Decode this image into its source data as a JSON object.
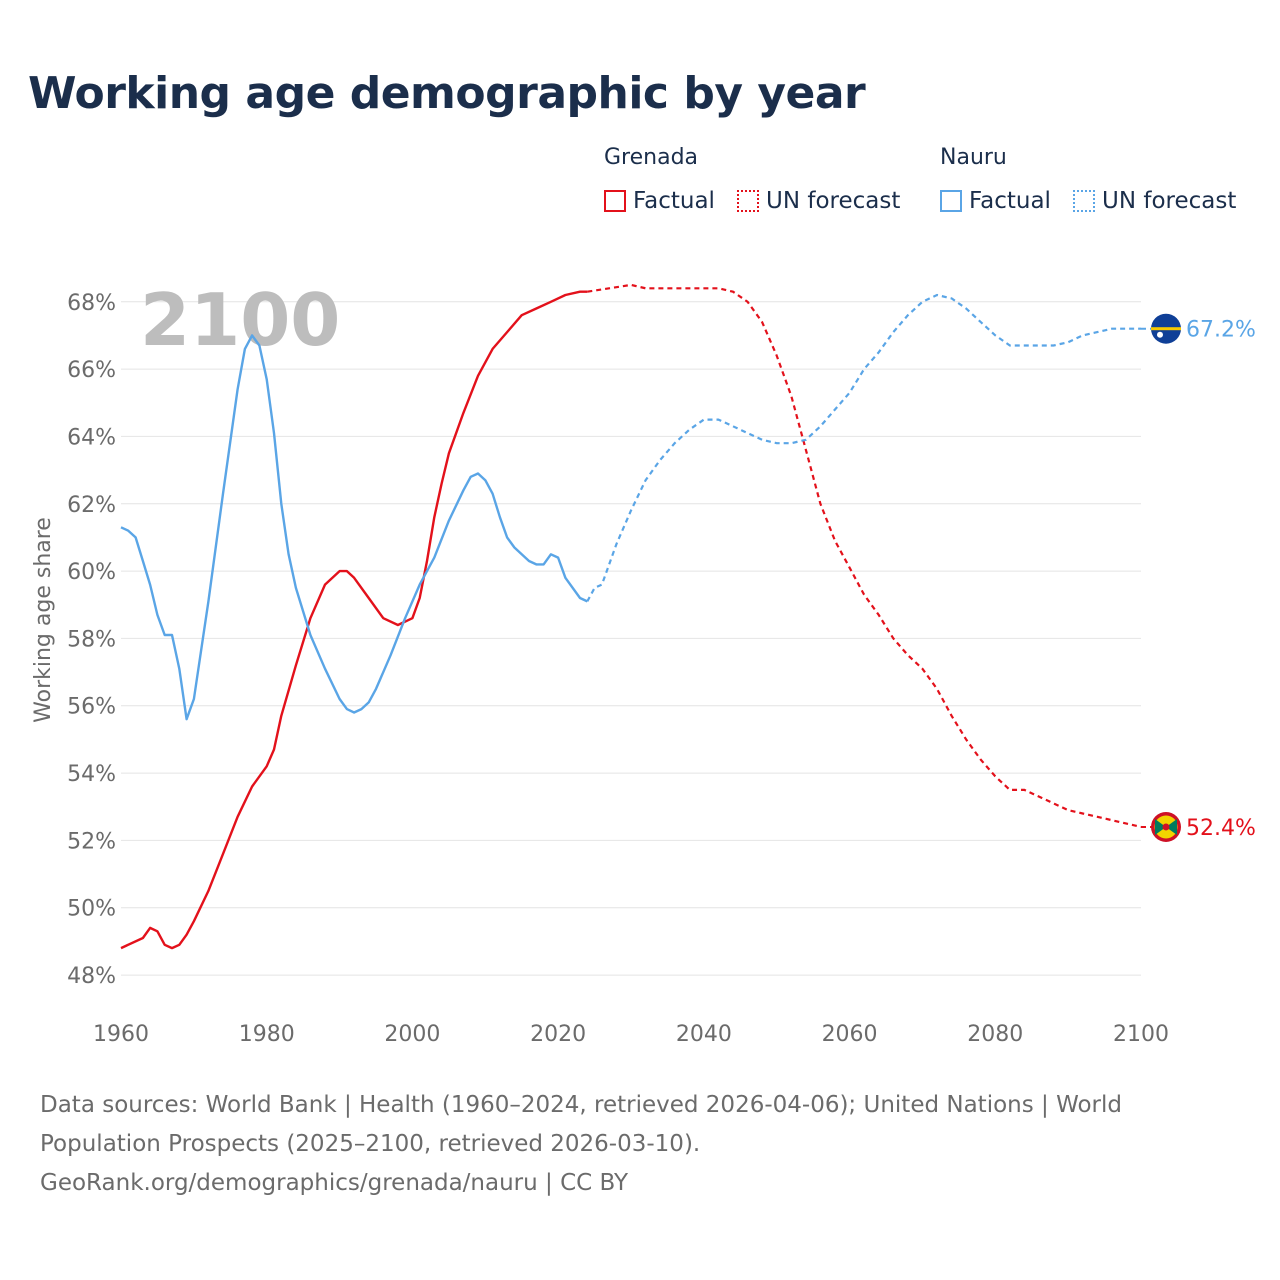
{
  "title": "Working age demographic by year",
  "legend": {
    "groups": [
      {
        "name": "Grenada",
        "color": "#e3111b",
        "items": [
          {
            "label": "Factual",
            "style": "solid"
          },
          {
            "label": "UN forecast",
            "style": "dotted"
          }
        ]
      },
      {
        "name": "Nauru",
        "color": "#5aa5e6",
        "items": [
          {
            "label": "Factual",
            "style": "solid"
          },
          {
            "label": "UN forecast",
            "style": "dotted"
          }
        ]
      }
    ]
  },
  "footer": {
    "line1": "Data sources: World Bank | Health (1960–2024, retrieved 2026-04-06); United Nations | World",
    "line2": "Population Prospects (2025–2100, retrieved 2026-03-10).",
    "line3": "GeoRank.org/demographics/grenada/nauru | CC BY"
  },
  "chart_data": {
    "type": "line",
    "ylabel": "Working age share",
    "xlabel": "",
    "year_display": "2100",
    "xlim": [
      1960,
      2100
    ],
    "ylim": [
      47.2,
      69.3
    ],
    "xticks": [
      1960,
      1980,
      2000,
      2020,
      2040,
      2060,
      2080,
      2100
    ],
    "yticks": [
      48,
      50,
      52,
      54,
      56,
      58,
      60,
      62,
      64,
      66,
      68
    ],
    "ytick_labels": [
      "48%",
      "50%",
      "52%",
      "54%",
      "56%",
      "58%",
      "60%",
      "62%",
      "64%",
      "66%",
      "68%"
    ],
    "forecast_start": 2024,
    "series": [
      {
        "name": "Grenada",
        "color": "#e3111b",
        "end_label": "52.4%",
        "flag": "grenada-flag",
        "points": [
          [
            1960,
            48.8
          ],
          [
            1963,
            49.1
          ],
          [
            1964,
            49.4
          ],
          [
            1965,
            49.3
          ],
          [
            1966,
            48.9
          ],
          [
            1967,
            48.8
          ],
          [
            1968,
            48.9
          ],
          [
            1969,
            49.2
          ],
          [
            1970,
            49.6
          ],
          [
            1972,
            50.5
          ],
          [
            1974,
            51.6
          ],
          [
            1976,
            52.7
          ],
          [
            1978,
            53.6
          ],
          [
            1980,
            54.2
          ],
          [
            1981,
            54.7
          ],
          [
            1982,
            55.7
          ],
          [
            1984,
            57.2
          ],
          [
            1986,
            58.6
          ],
          [
            1988,
            59.6
          ],
          [
            1990,
            60.0
          ],
          [
            1991,
            60.0
          ],
          [
            1992,
            59.8
          ],
          [
            1994,
            59.2
          ],
          [
            1996,
            58.6
          ],
          [
            1998,
            58.4
          ],
          [
            2000,
            58.6
          ],
          [
            2001,
            59.2
          ],
          [
            2002,
            60.3
          ],
          [
            2003,
            61.6
          ],
          [
            2004,
            62.6
          ],
          [
            2005,
            63.5
          ],
          [
            2007,
            64.7
          ],
          [
            2009,
            65.8
          ],
          [
            2011,
            66.6
          ],
          [
            2013,
            67.1
          ],
          [
            2015,
            67.6
          ],
          [
            2017,
            67.8
          ],
          [
            2019,
            68.0
          ],
          [
            2021,
            68.2
          ],
          [
            2023,
            68.3
          ],
          [
            2024,
            68.3
          ],
          [
            2027,
            68.4
          ],
          [
            2030,
            68.5
          ],
          [
            2032,
            68.4
          ],
          [
            2040,
            68.4
          ],
          [
            2042,
            68.4
          ],
          [
            2044,
            68.3
          ],
          [
            2046,
            68.0
          ],
          [
            2048,
            67.4
          ],
          [
            2050,
            66.4
          ],
          [
            2052,
            65.2
          ],
          [
            2054,
            63.6
          ],
          [
            2056,
            62.0
          ],
          [
            2058,
            60.9
          ],
          [
            2060,
            60.1
          ],
          [
            2062,
            59.3
          ],
          [
            2064,
            58.7
          ],
          [
            2066,
            58.0
          ],
          [
            2068,
            57.5
          ],
          [
            2070,
            57.1
          ],
          [
            2072,
            56.5
          ],
          [
            2074,
            55.7
          ],
          [
            2076,
            55.0
          ],
          [
            2078,
            54.4
          ],
          [
            2080,
            53.9
          ],
          [
            2082,
            53.5
          ],
          [
            2084,
            53.5
          ],
          [
            2086,
            53.3
          ],
          [
            2088,
            53.1
          ],
          [
            2090,
            52.9
          ],
          [
            2092,
            52.8
          ],
          [
            2094,
            52.7
          ],
          [
            2096,
            52.6
          ],
          [
            2098,
            52.5
          ],
          [
            2100,
            52.4
          ]
        ]
      },
      {
        "name": "Nauru",
        "color": "#5aa5e6",
        "end_label": "67.2%",
        "flag": "nauru-flag",
        "points": [
          [
            1960,
            61.3
          ],
          [
            1961,
            61.2
          ],
          [
            1962,
            61.0
          ],
          [
            1963,
            60.3
          ],
          [
            1964,
            59.6
          ],
          [
            1965,
            58.7
          ],
          [
            1966,
            58.1
          ],
          [
            1967,
            58.1
          ],
          [
            1968,
            57.1
          ],
          [
            1969,
            55.6
          ],
          [
            1970,
            56.2
          ],
          [
            1972,
            59.1
          ],
          [
            1974,
            62.3
          ],
          [
            1976,
            65.4
          ],
          [
            1977,
            66.6
          ],
          [
            1978,
            67.0
          ],
          [
            1979,
            66.7
          ],
          [
            1980,
            65.7
          ],
          [
            1981,
            64.1
          ],
          [
            1982,
            62.0
          ],
          [
            1983,
            60.5
          ],
          [
            1984,
            59.5
          ],
          [
            1986,
            58.1
          ],
          [
            1988,
            57.1
          ],
          [
            1990,
            56.2
          ],
          [
            1991,
            55.9
          ],
          [
            1992,
            55.8
          ],
          [
            1993,
            55.9
          ],
          [
            1994,
            56.1
          ],
          [
            1995,
            56.5
          ],
          [
            1997,
            57.5
          ],
          [
            1999,
            58.6
          ],
          [
            2001,
            59.6
          ],
          [
            2003,
            60.4
          ],
          [
            2005,
            61.5
          ],
          [
            2007,
            62.4
          ],
          [
            2008,
            62.8
          ],
          [
            2009,
            62.9
          ],
          [
            2010,
            62.7
          ],
          [
            2011,
            62.3
          ],
          [
            2012,
            61.6
          ],
          [
            2013,
            61.0
          ],
          [
            2014,
            60.7
          ],
          [
            2016,
            60.3
          ],
          [
            2017,
            60.2
          ],
          [
            2018,
            60.2
          ],
          [
            2019,
            60.5
          ],
          [
            2020,
            60.4
          ],
          [
            2021,
            59.8
          ],
          [
            2023,
            59.2
          ],
          [
            2024,
            59.1
          ],
          [
            2025,
            59.5
          ],
          [
            2026,
            59.6
          ],
          [
            2028,
            60.8
          ],
          [
            2030,
            61.8
          ],
          [
            2032,
            62.7
          ],
          [
            2034,
            63.3
          ],
          [
            2036,
            63.8
          ],
          [
            2038,
            64.2
          ],
          [
            2040,
            64.5
          ],
          [
            2042,
            64.5
          ],
          [
            2044,
            64.3
          ],
          [
            2046,
            64.1
          ],
          [
            2048,
            63.9
          ],
          [
            2050,
            63.8
          ],
          [
            2052,
            63.8
          ],
          [
            2054,
            63.9
          ],
          [
            2056,
            64.3
          ],
          [
            2058,
            64.8
          ],
          [
            2060,
            65.3
          ],
          [
            2062,
            66.0
          ],
          [
            2064,
            66.5
          ],
          [
            2066,
            67.1
          ],
          [
            2068,
            67.6
          ],
          [
            2070,
            68.0
          ],
          [
            2072,
            68.2
          ],
          [
            2074,
            68.1
          ],
          [
            2076,
            67.8
          ],
          [
            2078,
            67.4
          ],
          [
            2080,
            67.0
          ],
          [
            2082,
            66.7
          ],
          [
            2084,
            66.7
          ],
          [
            2086,
            66.7
          ],
          [
            2088,
            66.7
          ],
          [
            2090,
            66.8
          ],
          [
            2092,
            67.0
          ],
          [
            2094,
            67.1
          ],
          [
            2096,
            67.2
          ],
          [
            2098,
            67.2
          ],
          [
            2100,
            67.2
          ]
        ]
      }
    ]
  }
}
